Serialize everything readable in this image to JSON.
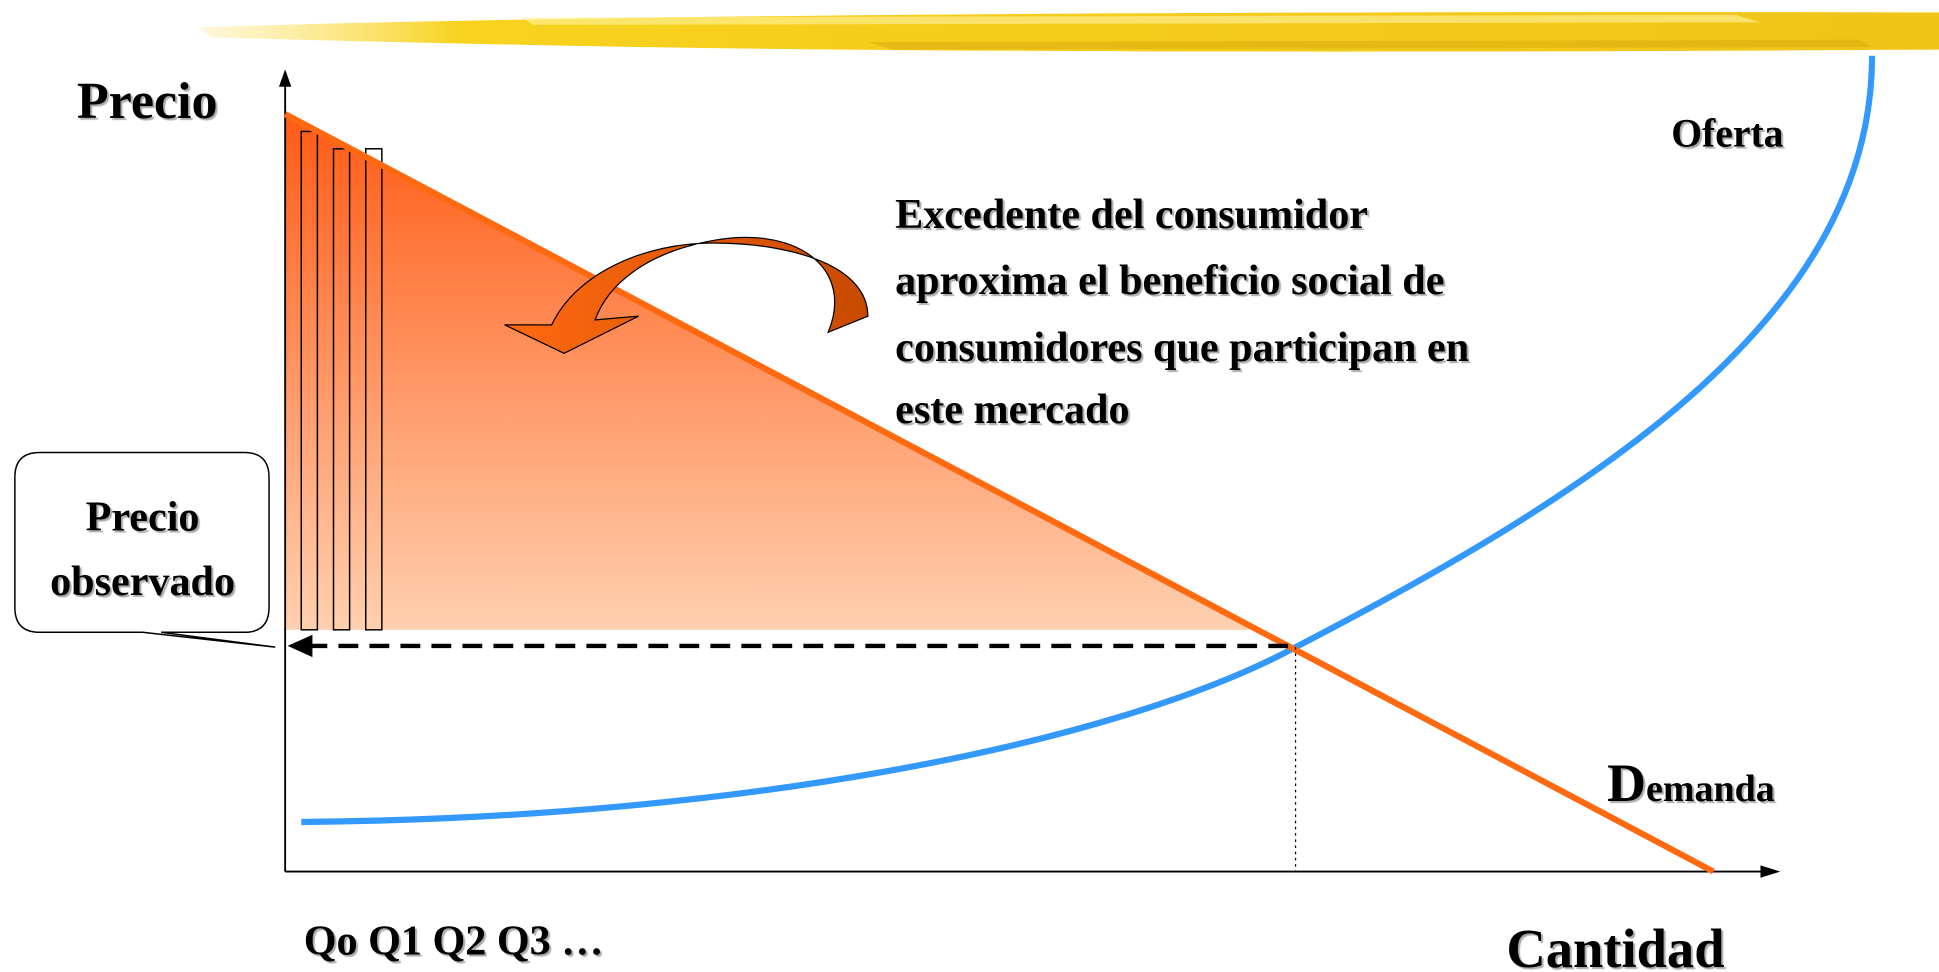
{
  "axes": {
    "y_label": "Precio",
    "x_label": "Cantidad",
    "x_ticks": "Qo Q1 Q2 Q3 …"
  },
  "curves": {
    "supply": "Oferta",
    "demand": "Demanda"
  },
  "annotation": {
    "lines": [
      "Excedente del consumidor",
      "aproxima el beneficio social de",
      "consumidores que participan en",
      "este mercado"
    ]
  },
  "callout": {
    "lines": [
      "Precio",
      "observado"
    ]
  }
}
